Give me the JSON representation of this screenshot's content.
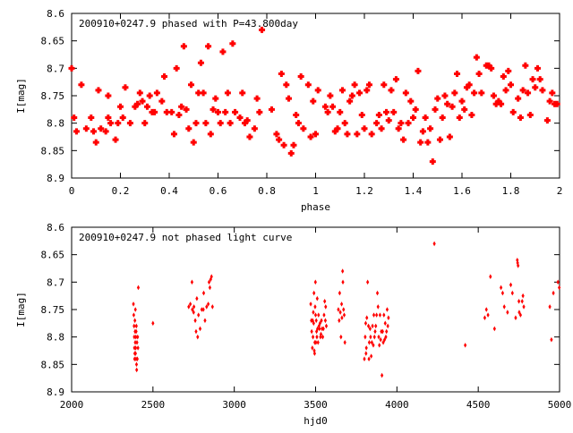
{
  "colors": {
    "points": "#ff0000",
    "axes": "#000000",
    "background": "#ffffff"
  },
  "chart_data": [
    {
      "type": "scatter",
      "title": "200910+0247.9 phased with P=43.800day",
      "xlabel": "phase",
      "ylabel": "I[mag]",
      "xlim": [
        0,
        2
      ],
      "ylim": [
        8.6,
        8.9
      ],
      "y_inverted": true,
      "grid": false,
      "legend": "none",
      "marker": "filled-plus",
      "x_ticks": [
        "0",
        "0.2",
        "0.4",
        "0.6",
        "0.8",
        "1",
        "1.2",
        "1.4",
        "1.6",
        "1.8",
        "2"
      ],
      "y_ticks": [
        "8.6",
        "8.65",
        "8.7",
        "8.75",
        "8.8",
        "8.85",
        "8.9"
      ],
      "points": [
        [
          0.0,
          8.7
        ],
        [
          0.01,
          8.79
        ],
        [
          0.02,
          8.815
        ],
        [
          0.04,
          8.73
        ],
        [
          0.06,
          8.81
        ],
        [
          0.08,
          8.79
        ],
        [
          0.09,
          8.815
        ],
        [
          0.1,
          8.835
        ],
        [
          0.11,
          8.74
        ],
        [
          0.12,
          8.81
        ],
        [
          0.14,
          8.815
        ],
        [
          0.15,
          8.75
        ],
        [
          0.15,
          8.79
        ],
        [
          0.16,
          8.8
        ],
        [
          0.18,
          8.83
        ],
        [
          0.19,
          8.8
        ],
        [
          0.2,
          8.77
        ],
        [
          0.21,
          8.79
        ],
        [
          0.22,
          8.735
        ],
        [
          0.24,
          8.8
        ],
        [
          0.26,
          8.77
        ],
        [
          0.27,
          8.765
        ],
        [
          0.28,
          8.745
        ],
        [
          0.29,
          8.76
        ],
        [
          0.3,
          8.8
        ],
        [
          0.31,
          8.77
        ],
        [
          0.32,
          8.75
        ],
        [
          0.33,
          8.78
        ],
        [
          0.34,
          8.78
        ],
        [
          0.35,
          8.745
        ],
        [
          0.37,
          8.76
        ],
        [
          0.38,
          8.715
        ],
        [
          0.39,
          8.78
        ],
        [
          0.41,
          8.78
        ],
        [
          0.42,
          8.82
        ],
        [
          0.43,
          8.7
        ],
        [
          0.44,
          8.785
        ],
        [
          0.45,
          8.77
        ],
        [
          0.46,
          8.66
        ],
        [
          0.47,
          8.775
        ],
        [
          0.48,
          8.81
        ],
        [
          0.49,
          8.73
        ],
        [
          0.5,
          8.835
        ],
        [
          0.51,
          8.8
        ],
        [
          0.52,
          8.745
        ],
        [
          0.53,
          8.69
        ],
        [
          0.54,
          8.745
        ],
        [
          0.55,
          8.8
        ],
        [
          0.56,
          8.66
        ],
        [
          0.57,
          8.82
        ],
        [
          0.58,
          8.775
        ],
        [
          0.59,
          8.755
        ],
        [
          0.6,
          8.78
        ],
        [
          0.61,
          8.8
        ],
        [
          0.62,
          8.67
        ],
        [
          0.63,
          8.78
        ],
        [
          0.64,
          8.745
        ],
        [
          0.65,
          8.8
        ],
        [
          0.66,
          8.655
        ],
        [
          0.67,
          8.78
        ],
        [
          0.69,
          8.79
        ],
        [
          0.7,
          8.745
        ],
        [
          0.71,
          8.8
        ],
        [
          0.72,
          8.795
        ],
        [
          0.73,
          8.825
        ],
        [
          0.75,
          8.81
        ],
        [
          0.76,
          8.755
        ],
        [
          0.77,
          8.78
        ],
        [
          0.78,
          8.63
        ],
        [
          0.82,
          8.775
        ],
        [
          0.84,
          8.82
        ],
        [
          0.85,
          8.83
        ],
        [
          0.86,
          8.71
        ],
        [
          0.87,
          8.84
        ],
        [
          0.88,
          8.73
        ],
        [
          0.89,
          8.755
        ],
        [
          0.9,
          8.855
        ],
        [
          0.91,
          8.84
        ],
        [
          0.92,
          8.785
        ],
        [
          0.93,
          8.8
        ],
        [
          0.94,
          8.715
        ],
        [
          0.95,
          8.81
        ],
        [
          0.97,
          8.73
        ],
        [
          0.98,
          8.825
        ],
        [
          0.99,
          8.76
        ],
        [
          1.0,
          8.82
        ],
        [
          1.01,
          8.74
        ],
        [
          1.04,
          8.77
        ],
        [
          1.05,
          8.78
        ],
        [
          1.06,
          8.75
        ],
        [
          1.07,
          8.77
        ],
        [
          1.08,
          8.815
        ],
        [
          1.09,
          8.81
        ],
        [
          1.1,
          8.78
        ],
        [
          1.11,
          8.74
        ],
        [
          1.12,
          8.8
        ],
        [
          1.13,
          8.82
        ],
        [
          1.14,
          8.76
        ],
        [
          1.15,
          8.75
        ],
        [
          1.16,
          8.73
        ],
        [
          1.17,
          8.82
        ],
        [
          1.18,
          8.745
        ],
        [
          1.19,
          8.785
        ],
        [
          1.2,
          8.81
        ],
        [
          1.21,
          8.74
        ],
        [
          1.22,
          8.73
        ],
        [
          1.23,
          8.82
        ],
        [
          1.25,
          8.8
        ],
        [
          1.26,
          8.785
        ],
        [
          1.27,
          8.81
        ],
        [
          1.28,
          8.73
        ],
        [
          1.29,
          8.78
        ],
        [
          1.3,
          8.795
        ],
        [
          1.31,
          8.74
        ],
        [
          1.32,
          8.78
        ],
        [
          1.33,
          8.72
        ],
        [
          1.34,
          8.81
        ],
        [
          1.35,
          8.8
        ],
        [
          1.36,
          8.83
        ],
        [
          1.37,
          8.745
        ],
        [
          1.38,
          8.8
        ],
        [
          1.39,
          8.76
        ],
        [
          1.4,
          8.79
        ],
        [
          1.41,
          8.775
        ],
        [
          1.42,
          8.705
        ],
        [
          1.43,
          8.835
        ],
        [
          1.44,
          8.815
        ],
        [
          1.45,
          8.79
        ],
        [
          1.46,
          8.835
        ],
        [
          1.47,
          8.81
        ],
        [
          1.48,
          8.87
        ],
        [
          1.49,
          8.775
        ],
        [
          1.5,
          8.755
        ],
        [
          1.51,
          8.83
        ],
        [
          1.52,
          8.79
        ],
        [
          1.53,
          8.75
        ],
        [
          1.54,
          8.765
        ],
        [
          1.55,
          8.825
        ],
        [
          1.56,
          8.77
        ],
        [
          1.57,
          8.745
        ],
        [
          1.58,
          8.71
        ],
        [
          1.59,
          8.79
        ],
        [
          1.6,
          8.76
        ],
        [
          1.61,
          8.775
        ],
        [
          1.62,
          8.735
        ],
        [
          1.63,
          8.73
        ],
        [
          1.64,
          8.785
        ],
        [
          1.65,
          8.745
        ],
        [
          1.66,
          8.68
        ],
        [
          1.67,
          8.71
        ],
        [
          1.68,
          8.745
        ],
        [
          1.7,
          8.695
        ],
        [
          1.71,
          8.695
        ],
        [
          1.72,
          8.7
        ],
        [
          1.73,
          8.75
        ],
        [
          1.74,
          8.765
        ],
        [
          1.75,
          8.76
        ],
        [
          1.76,
          8.765
        ],
        [
          1.77,
          8.715
        ],
        [
          1.78,
          8.74
        ],
        [
          1.79,
          8.705
        ],
        [
          1.8,
          8.73
        ],
        [
          1.81,
          8.78
        ],
        [
          1.83,
          8.755
        ],
        [
          1.84,
          8.79
        ],
        [
          1.85,
          8.74
        ],
        [
          1.86,
          8.695
        ],
        [
          1.87,
          8.745
        ],
        [
          1.88,
          8.785
        ],
        [
          1.89,
          8.72
        ],
        [
          1.9,
          8.735
        ],
        [
          1.91,
          8.7
        ],
        [
          1.92,
          8.72
        ],
        [
          1.93,
          8.74
        ],
        [
          1.95,
          8.795
        ],
        [
          1.96,
          8.76
        ],
        [
          1.97,
          8.745
        ],
        [
          1.98,
          8.765
        ],
        [
          1.99,
          8.765
        ]
      ]
    },
    {
      "type": "scatter",
      "title": "200910+0247.9 not phased light curve",
      "xlabel": "hjd0",
      "ylabel": "I[mag]",
      "xlim": [
        2000,
        5000
      ],
      "ylim": [
        8.6,
        8.9
      ],
      "y_inverted": true,
      "grid": false,
      "legend": "none",
      "marker": "diamond",
      "x_ticks": [
        "2000",
        "2500",
        "3000",
        "3500",
        "4000",
        "4500",
        "5000"
      ],
      "y_ticks": [
        "8.6",
        "8.65",
        "8.7",
        "8.75",
        "8.8",
        "8.85",
        "8.9"
      ],
      "points": [
        [
          2380,
          8.74
        ],
        [
          2382,
          8.76
        ],
        [
          2384,
          8.78
        ],
        [
          2385,
          8.8
        ],
        [
          2386,
          8.82
        ],
        [
          2387,
          8.84
        ],
        [
          2388,
          8.83
        ],
        [
          2389,
          8.77
        ],
        [
          2390,
          8.79
        ],
        [
          2391,
          8.81
        ],
        [
          2392,
          8.75
        ],
        [
          2393,
          8.83
        ],
        [
          2394,
          8.82
        ],
        [
          2395,
          8.8
        ],
        [
          2396,
          8.84
        ],
        [
          2397,
          8.79
        ],
        [
          2398,
          8.78
        ],
        [
          2399,
          8.85
        ],
        [
          2400,
          8.86
        ],
        [
          2402,
          8.81
        ],
        [
          2404,
          8.84
        ],
        [
          2406,
          8.8
        ],
        [
          2408,
          8.82
        ],
        [
          2410,
          8.71
        ],
        [
          2500,
          8.775
        ],
        [
          2720,
          8.745
        ],
        [
          2730,
          8.74
        ],
        [
          2740,
          8.7
        ],
        [
          2742,
          8.75
        ],
        [
          2750,
          8.755
        ],
        [
          2752,
          8.745
        ],
        [
          2760,
          8.77
        ],
        [
          2765,
          8.79
        ],
        [
          2770,
          8.73
        ],
        [
          2775,
          8.8
        ],
        [
          2780,
          8.76
        ],
        [
          2790,
          8.785
        ],
        [
          2800,
          8.75
        ],
        [
          2810,
          8.75
        ],
        [
          2812,
          8.72
        ],
        [
          2820,
          8.77
        ],
        [
          2830,
          8.745
        ],
        [
          2840,
          8.74
        ],
        [
          2845,
          8.7
        ],
        [
          2850,
          8.71
        ],
        [
          2855,
          8.695
        ],
        [
          2860,
          8.69
        ],
        [
          2866,
          8.745
        ],
        [
          3470,
          8.74
        ],
        [
          3474,
          8.77
        ],
        [
          3476,
          8.79
        ],
        [
          3480,
          8.82
        ],
        [
          3482,
          8.77
        ],
        [
          3484,
          8.8
        ],
        [
          3486,
          8.755
        ],
        [
          3488,
          8.775
        ],
        [
          3490,
          8.72
        ],
        [
          3492,
          8.825
        ],
        [
          3494,
          8.83
        ],
        [
          3495,
          8.81
        ],
        [
          3497,
          8.745
        ],
        [
          3499,
          8.7
        ],
        [
          3500,
          8.76
        ],
        [
          3502,
          8.81
        ],
        [
          3504,
          8.77
        ],
        [
          3506,
          8.79
        ],
        [
          3508,
          8.8
        ],
        [
          3510,
          8.73
        ],
        [
          3512,
          8.785
        ],
        [
          3515,
          8.81
        ],
        [
          3518,
          8.76
        ],
        [
          3521,
          8.78
        ],
        [
          3524,
          8.785
        ],
        [
          3527,
          8.775
        ],
        [
          3530,
          8.8
        ],
        [
          3533,
          8.795
        ],
        [
          3536,
          8.77
        ],
        [
          3540,
          8.785
        ],
        [
          3544,
          8.8
        ],
        [
          3548,
          8.785
        ],
        [
          3552,
          8.76
        ],
        [
          3556,
          8.735
        ],
        [
          3560,
          8.77
        ],
        [
          3562,
          8.745
        ],
        [
          3566,
          8.78
        ],
        [
          3640,
          8.75
        ],
        [
          3645,
          8.77
        ],
        [
          3648,
          8.72
        ],
        [
          3652,
          8.755
        ],
        [
          3656,
          8.8
        ],
        [
          3660,
          8.74
        ],
        [
          3662,
          8.765
        ],
        [
          3666,
          8.68
        ],
        [
          3668,
          8.7
        ],
        [
          3672,
          8.75
        ],
        [
          3676,
          8.76
        ],
        [
          3680,
          8.81
        ],
        [
          3800,
          8.84
        ],
        [
          3805,
          8.8
        ],
        [
          3808,
          8.775
        ],
        [
          3810,
          8.83
        ],
        [
          3812,
          8.82
        ],
        [
          3815,
          8.765
        ],
        [
          3820,
          8.7
        ],
        [
          3825,
          8.78
        ],
        [
          3828,
          8.84
        ],
        [
          3830,
          8.81
        ],
        [
          3835,
          8.785
        ],
        [
          3838,
          8.8
        ],
        [
          3842,
          8.835
        ],
        [
          3846,
          8.81
        ],
        [
          3850,
          8.78
        ],
        [
          3855,
          8.815
        ],
        [
          3858,
          8.76
        ],
        [
          3862,
          8.8
        ],
        [
          3866,
          8.79
        ],
        [
          3870,
          8.78
        ],
        [
          3875,
          8.76
        ],
        [
          3880,
          8.72
        ],
        [
          3884,
          8.745
        ],
        [
          3888,
          8.8
        ],
        [
          3892,
          8.815
        ],
        [
          3896,
          8.76
        ],
        [
          3900,
          8.805
        ],
        [
          3904,
          8.79
        ],
        [
          3908,
          8.87
        ],
        [
          3912,
          8.79
        ],
        [
          3916,
          8.81
        ],
        [
          3920,
          8.76
        ],
        [
          3924,
          8.805
        ],
        [
          3928,
          8.775
        ],
        [
          3932,
          8.8
        ],
        [
          3936,
          8.79
        ],
        [
          3940,
          8.75
        ],
        [
          3944,
          8.78
        ],
        [
          3948,
          8.765
        ],
        [
          4230,
          8.63
        ],
        [
          4420,
          8.815
        ],
        [
          4540,
          8.765
        ],
        [
          4550,
          8.75
        ],
        [
          4560,
          8.76
        ],
        [
          4575,
          8.69
        ],
        [
          4600,
          8.785
        ],
        [
          4640,
          8.71
        ],
        [
          4650,
          8.72
        ],
        [
          4660,
          8.745
        ],
        [
          4680,
          8.755
        ],
        [
          4700,
          8.705
        ],
        [
          4710,
          8.72
        ],
        [
          4730,
          8.765
        ],
        [
          4740,
          8.66
        ],
        [
          4742,
          8.665
        ],
        [
          4745,
          8.67
        ],
        [
          4750,
          8.735
        ],
        [
          4752,
          8.755
        ],
        [
          4760,
          8.76
        ],
        [
          4770,
          8.735
        ],
        [
          4775,
          8.725
        ],
        [
          4780,
          8.745
        ],
        [
          4940,
          8.745
        ],
        [
          4950,
          8.805
        ],
        [
          4962,
          8.72
        ],
        [
          4990,
          8.7
        ],
        [
          4998,
          8.71
        ]
      ]
    }
  ]
}
